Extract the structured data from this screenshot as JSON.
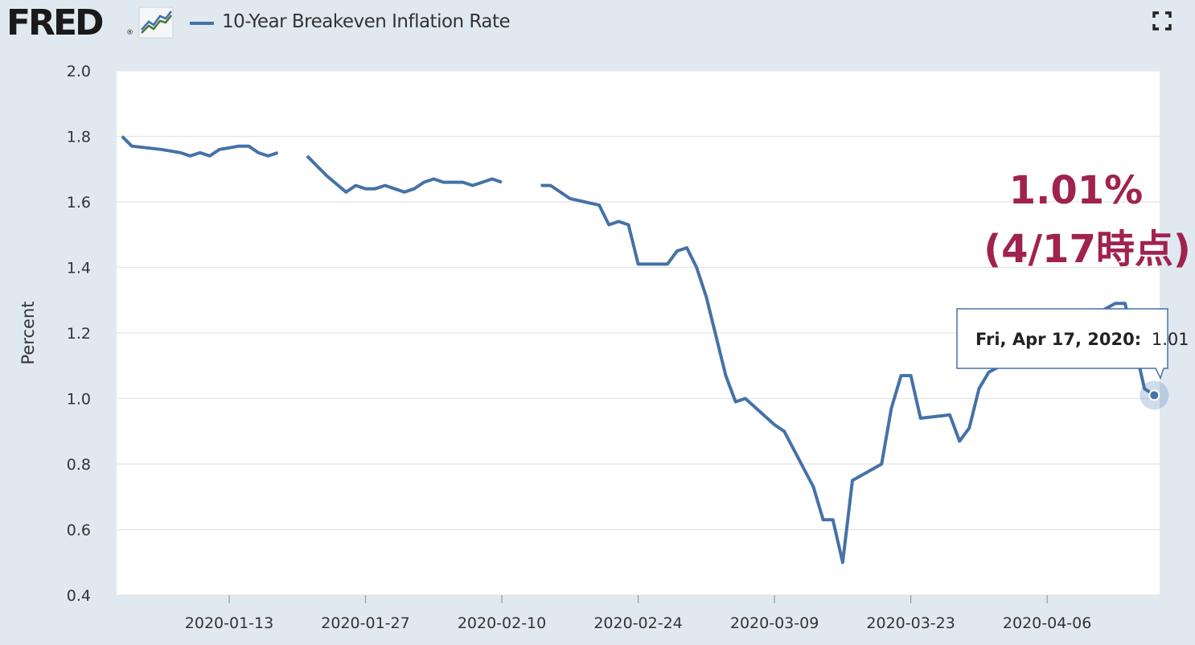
{
  "header": {
    "logo_text": "FRED",
    "logo_reg": "®",
    "legend_label": "10-Year Breakeven Inflation Rate",
    "icons": [
      "fred-graph-icon",
      "fullscreen-icon"
    ]
  },
  "annotation": {
    "line1": "1.01%",
    "line2": "(4/17時点)",
    "color": "#a0234f"
  },
  "tooltip": {
    "date": "Fri, Apr 17, 2020:",
    "value": "1.01"
  },
  "chart_data": {
    "type": "line",
    "title": "",
    "xlabel": "",
    "ylabel": "Percent",
    "ylim": [
      0.4,
      2.0
    ],
    "yticks": [
      "0.4",
      "0.6",
      "0.8",
      "1.0",
      "1.2",
      "1.4",
      "1.6",
      "1.8",
      "2.0"
    ],
    "xticks": [
      "2020-01-13",
      "2020-01-27",
      "2020-02-10",
      "2020-02-24",
      "2020-03-09",
      "2020-03-23",
      "2020-04-06"
    ],
    "grid": true,
    "line_color": "#4572a7",
    "series": [
      {
        "name": "10-Year Breakeven Inflation Rate",
        "segments": [
          [
            [
              "2020-01-02",
              1.8
            ],
            [
              "2020-01-03",
              1.77
            ],
            [
              "2020-01-06",
              1.76
            ],
            [
              "2020-01-07",
              1.755
            ],
            [
              "2020-01-08",
              1.75
            ],
            [
              "2020-01-09",
              1.74
            ],
            [
              "2020-01-10",
              1.75
            ],
            [
              "2020-01-11",
              1.74
            ],
            [
              "2020-01-12",
              1.76
            ],
            [
              "2020-01-13",
              1.765
            ],
            [
              "2020-01-14",
              1.77
            ],
            [
              "2020-01-15",
              1.77
            ],
            [
              "2020-01-16",
              1.75
            ],
            [
              "2020-01-17",
              1.74
            ],
            [
              "2020-01-18",
              1.75
            ]
          ],
          [
            [
              "2020-01-21",
              1.74
            ],
            [
              "2020-01-22",
              1.71
            ],
            [
              "2020-01-23",
              1.68
            ],
            [
              "2020-01-24",
              1.655
            ],
            [
              "2020-01-25",
              1.63
            ],
            [
              "2020-01-26",
              1.65
            ],
            [
              "2020-01-27",
              1.64
            ],
            [
              "2020-01-28",
              1.64
            ],
            [
              "2020-01-29",
              1.65
            ],
            [
              "2020-01-30",
              1.64
            ],
            [
              "2020-01-31",
              1.63
            ],
            [
              "2020-02-01",
              1.64
            ],
            [
              "2020-02-02",
              1.66
            ],
            [
              "2020-02-03",
              1.67
            ],
            [
              "2020-02-04",
              1.66
            ],
            [
              "2020-02-05",
              1.66
            ],
            [
              "2020-02-06",
              1.66
            ],
            [
              "2020-02-07",
              1.65
            ],
            [
              "2020-02-08",
              1.66
            ],
            [
              "2020-02-09",
              1.67
            ],
            [
              "2020-02-10",
              1.66
            ]
          ],
          [
            [
              "2020-02-14",
              1.65
            ],
            [
              "2020-02-15",
              1.65
            ],
            [
              "2020-02-17",
              1.61
            ],
            [
              "2020-02-20",
              1.59
            ],
            [
              "2020-02-21",
              1.53
            ],
            [
              "2020-02-22",
              1.54
            ],
            [
              "2020-02-23",
              1.53
            ],
            [
              "2020-02-24",
              1.41
            ],
            [
              "2020-02-27",
              1.41
            ],
            [
              "2020-02-28",
              1.45
            ],
            [
              "2020-02-29",
              1.46
            ],
            [
              "2020-03-01",
              1.4
            ],
            [
              "2020-03-02",
              1.31
            ],
            [
              "2020-03-03",
              1.19
            ],
            [
              "2020-03-04",
              1.07
            ],
            [
              "2020-03-05",
              0.99
            ],
            [
              "2020-03-06",
              1.0
            ],
            [
              "2020-03-09",
              0.92
            ],
            [
              "2020-03-10",
              0.9
            ],
            [
              "2020-03-13",
              0.73
            ],
            [
              "2020-03-14",
              0.63
            ],
            [
              "2020-03-15",
              0.63
            ],
            [
              "2020-03-16",
              0.5
            ],
            [
              "2020-03-17",
              0.75
            ],
            [
              "2020-03-20",
              0.8
            ],
            [
              "2020-03-21",
              0.97
            ],
            [
              "2020-03-22",
              1.07
            ],
            [
              "2020-03-23",
              1.07
            ],
            [
              "2020-03-24",
              0.94
            ],
            [
              "2020-03-27",
              0.95
            ],
            [
              "2020-03-28",
              0.87
            ],
            [
              "2020-03-29",
              0.91
            ],
            [
              "2020-03-30",
              1.03
            ],
            [
              "2020-03-31",
              1.08
            ],
            [
              "2020-04-13",
              1.29
            ],
            [
              "2020-04-14",
              1.29
            ],
            [
              "2020-04-16",
              1.03
            ],
            [
              "2020-04-17",
              1.01
            ]
          ]
        ]
      }
    ],
    "highlighted_point": [
      "2020-04-17",
      1.01
    ]
  }
}
